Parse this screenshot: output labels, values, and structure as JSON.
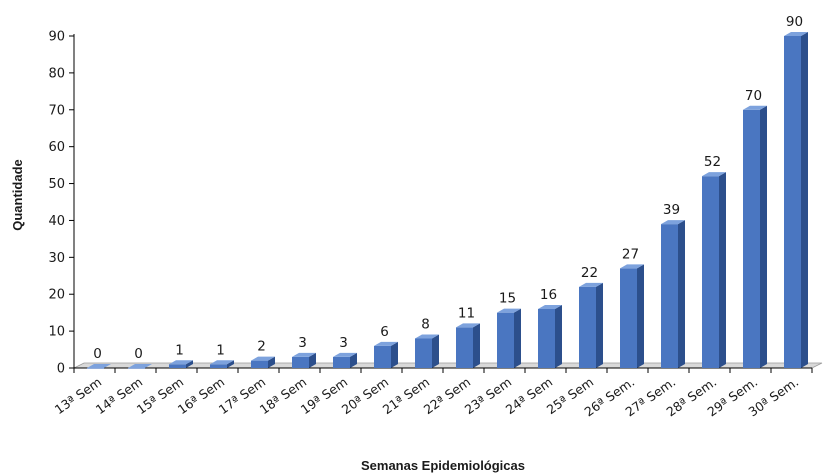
{
  "chart_data": {
    "type": "bar",
    "title": "",
    "xlabel": "Semanas Epidemiológicas",
    "ylabel": "Quantidade",
    "ylim": [
      0,
      90
    ],
    "yticks": [
      0,
      10,
      20,
      30,
      40,
      50,
      60,
      70,
      80,
      90
    ],
    "grid": false,
    "legend": "none",
    "bar_style": "3d",
    "colors": {
      "bar_front": "#4a76c1",
      "bar_side": "#2c4f8c",
      "bar_top": "#7da2dd",
      "floor": "#d9d9d9",
      "axis": "#000000"
    },
    "categories": [
      "13ª Sem",
      "14ª Sem",
      "15ª Sem",
      "16ª Sem",
      "17ª Sem",
      "18ª Sem",
      "19ª Sem",
      "20ª Sem",
      "21ª Sem",
      "22ª Sem",
      "23ª Sem",
      "24ª Sem",
      "25ª Sem",
      "26ª Sem.",
      "27ª Sem.",
      "28ª Sem.",
      "29ª Sem.",
      "30ª Sem."
    ],
    "values": [
      0,
      0,
      1,
      1,
      2,
      3,
      3,
      6,
      8,
      11,
      15,
      16,
      22,
      27,
      39,
      52,
      70,
      90
    ]
  }
}
